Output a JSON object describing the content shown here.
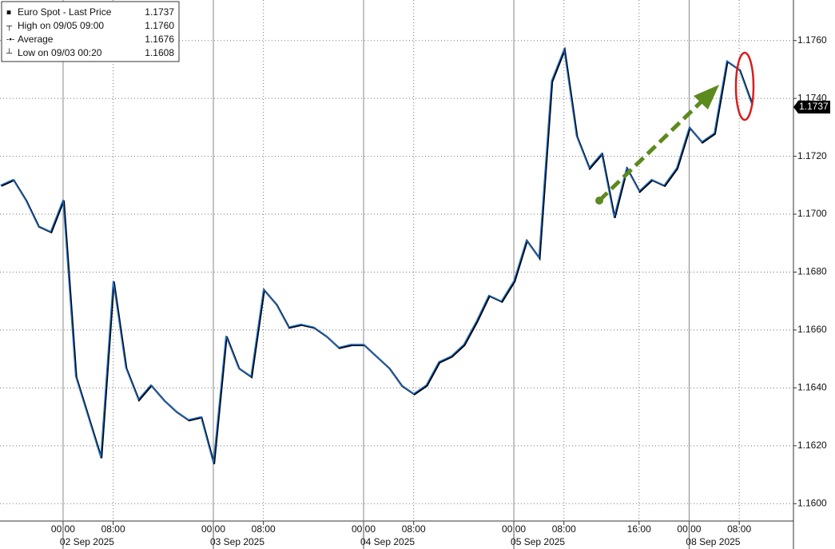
{
  "chart_data": {
    "type": "line",
    "categories": [
      null,
      null,
      null,
      null,
      null,
      "00:00",
      null,
      null,
      null,
      "08:00",
      null,
      null,
      null,
      null,
      null,
      null,
      null,
      "00:00",
      null,
      null,
      null,
      "08:00",
      null,
      null,
      null,
      null,
      null,
      null,
      null,
      "00:00",
      null,
      null,
      null,
      "08:00",
      null,
      null,
      null,
      null,
      null,
      null,
      null,
      "00:00",
      null,
      null,
      null,
      "08:00",
      null,
      null,
      null,
      null,
      null,
      "16:00",
      null,
      null,
      null,
      "00:00",
      null,
      null,
      null,
      "08:00",
      null
    ],
    "dates": [
      null,
      null,
      null,
      null,
      null,
      "02 Sep 2025",
      null,
      null,
      null,
      null,
      null,
      null,
      null,
      null,
      null,
      null,
      null,
      "03 Sep 2025",
      null,
      null,
      null,
      null,
      null,
      null,
      null,
      null,
      null,
      null,
      null,
      "04 Sep 2025",
      null,
      null,
      null,
      null,
      null,
      null,
      null,
      null,
      null,
      null,
      null,
      "05 Sep 2025",
      null,
      null,
      null,
      null,
      null,
      null,
      null,
      null,
      null,
      null,
      null,
      null,
      null,
      "08 Sep 2025",
      null,
      null,
      null,
      null,
      null
    ],
    "series": [
      {
        "name": "Euro Spot - Last Price",
        "color": "#1f6fd0",
        "values": [
          1.171,
          1.1712,
          1.1705,
          1.1696,
          1.1694,
          1.1705,
          1.1644,
          1.163,
          1.1616,
          1.1677,
          1.1647,
          1.1636,
          1.1641,
          1.1636,
          1.1632,
          1.1629,
          1.163,
          1.1614,
          1.1658,
          1.1647,
          1.1644,
          1.1674,
          1.1669,
          1.1661,
          1.1662,
          1.1661,
          1.1658,
          1.1654,
          1.1655,
          1.1655,
          1.1651,
          1.1647,
          1.1641,
          1.1638,
          1.1641,
          1.1649,
          1.1651,
          1.1655,
          1.1663,
          1.1672,
          1.167,
          1.1677,
          1.1691,
          1.1685,
          1.1746,
          1.1757,
          1.1727,
          1.1716,
          1.1721,
          1.1699,
          1.1716,
          1.1708,
          1.1712,
          1.171,
          1.1716,
          1.173,
          1.1725,
          1.1728,
          1.1753,
          1.175,
          1.1738
        ]
      }
    ],
    "legend": [
      {
        "name": "Euro Spot - Last Price",
        "value": 1.1737
      },
      {
        "name": "High on 09/05 09:00",
        "value": {
          "value": 1.176,
          "label": "1.1760"
        }
      },
      {
        "name": "Average",
        "value": 1.1676
      },
      {
        "name": "Low on 09/03 00:20",
        "value": 1.1608
      }
    ],
    "last_price": 1.1737,
    "ylim": [
      1.1594,
      1.1774
    ],
    "yticks": [
      {
        "value": 1.16,
        "label": "1.1600"
      },
      {
        "value": 1.162,
        "label": "1.1620"
      },
      {
        "value": 1.164,
        "label": "1.1640"
      },
      {
        "value": 1.166,
        "label": "1.1660"
      },
      {
        "value": 1.168,
        "label": "1.1680"
      },
      {
        "value": 1.17,
        "label": "1.1700"
      },
      {
        "value": 1.172,
        "label": "1.1720"
      },
      {
        "value": 1.174,
        "label": "1.1740"
      },
      {
        "value": 1.176,
        "label": "1.1760"
      }
    ],
    "grid": true
  }
}
